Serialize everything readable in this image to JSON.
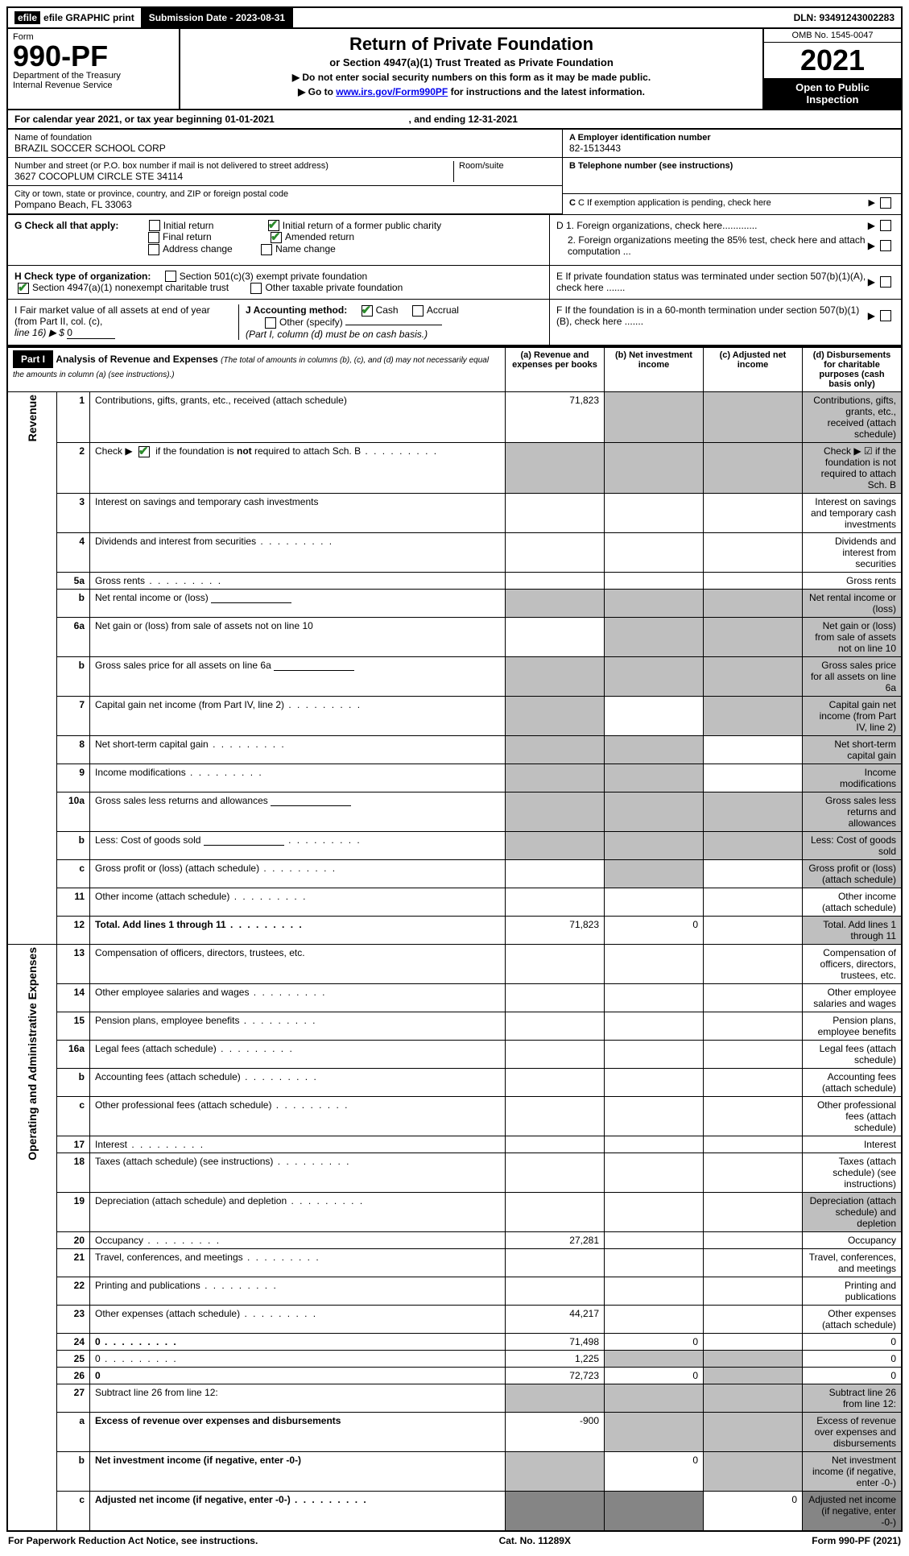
{
  "colors": {
    "black": "#000000",
    "white": "#ffffff",
    "grey_cell": "#bfbfbf",
    "dark_cell": "#858585",
    "link": "#0000ee",
    "check_green": "#2a8a2a"
  },
  "topbar": {
    "efile": "efile GRAPHIC print",
    "submission_label": "Submission Date - 2023-08-31",
    "dln_label": "DLN: 93491243002283"
  },
  "header": {
    "form_word": "Form",
    "form_number": "990-PF",
    "dept1": "Department of the Treasury",
    "dept2": "Internal Revenue Service",
    "title": "Return of Private Foundation",
    "subtitle": "or Section 4947(a)(1) Trust Treated as Private Foundation",
    "instr1_prefix": "▶ Do not enter social security numbers on this form as it may be made public.",
    "instr2_prefix": "▶ Go to ",
    "instr2_link_text": "www.irs.gov/Form990PF",
    "instr2_suffix": " for instructions and the latest information.",
    "omb": "OMB No. 1545-0047",
    "year": "2021",
    "open_public_1": "Open to Public",
    "open_public_2": "Inspection"
  },
  "calendar_line": {
    "prefix": "For calendar year 2021, or tax year beginning ",
    "begin": "01-01-2021",
    "mid": " , and ending ",
    "end": "12-31-2021"
  },
  "identity": {
    "name_label": "Name of foundation",
    "name_value": "BRAZIL SOCCER SCHOOL CORP",
    "addr_label": "Number and street (or P.O. box number if mail is not delivered to street address)",
    "addr_value": "3627 COCOPLUM CIRCLE STE 34114",
    "room_label": "Room/suite",
    "city_label": "City or town, state or province, country, and ZIP or foreign postal code",
    "city_value": "Pompano Beach, FL  33063",
    "a_label": "A Employer identification number",
    "a_value": "82-1513443",
    "b_label": "B Telephone number (see instructions)",
    "c_label": "C If exemption application is pending, check here",
    "d1_label": "D 1. Foreign organizations, check here.............",
    "d2_label": "2. Foreign organizations meeting the 85% test, check here and attach computation ...",
    "e_label": "E If private foundation status was terminated under section 507(b)(1)(A), check here .......",
    "f_label": "F If the foundation is in a 60-month termination under section 507(b)(1)(B), check here ......."
  },
  "g_section": {
    "label": "G Check all that apply:",
    "opts": {
      "initial_return": "Initial return",
      "final_return": "Final return",
      "address_change": "Address change",
      "initial_former": "Initial return of a former public charity",
      "amended": "Amended return",
      "name_change": "Name change"
    },
    "checked": {
      "initial_former": true,
      "amended": true
    }
  },
  "h_section": {
    "label": "H Check type of organization:",
    "opt1": "Section 501(c)(3) exempt private foundation",
    "opt2": "Section 4947(a)(1) nonexempt charitable trust",
    "opt3": "Other taxable private foundation",
    "checked": {
      "opt2": true
    }
  },
  "i_section": {
    "label_1": "I Fair market value of all assets at end of year (from Part II, col. (c),",
    "label_2": "line 16) ▶ $ ",
    "value": "0"
  },
  "j_section": {
    "label": "J Accounting method:",
    "cash": "Cash",
    "accrual": "Accrual",
    "other": "Other (specify)",
    "note": "(Part I, column (d) must be on cash basis.)",
    "checked": {
      "cash": true
    }
  },
  "part1": {
    "header": "Part I",
    "title": "Analysis of Revenue and Expenses",
    "title_note": " (The total of amounts in columns (b), (c), and (d) may not necessarily equal the amounts in column (a) (see instructions).)",
    "cols": {
      "a": "(a)  Revenue and expenses per books",
      "b": "(b)  Net investment income",
      "c": "(c)  Adjusted net income",
      "d": "(d)  Disbursements for charitable purposes (cash basis only)"
    }
  },
  "side_labels": {
    "revenue": "Revenue",
    "expenses": "Operating and Administrative Expenses"
  },
  "lines": [
    {
      "n": "1",
      "d": "Contributions, gifts, grants, etc., received (attach schedule)",
      "a": "71,823",
      "grey": [
        "b",
        "c",
        "d"
      ]
    },
    {
      "n": "2",
      "d": "Check ▶ ☑ if the foundation is not required to attach Sch. B",
      "dots": true,
      "grey": [
        "a",
        "b",
        "c",
        "d"
      ],
      "check2": true
    },
    {
      "n": "3",
      "d": "Interest on savings and temporary cash investments"
    },
    {
      "n": "4",
      "d": "Dividends and interest from securities",
      "dots": true
    },
    {
      "n": "5a",
      "d": "Gross rents",
      "dots": true
    },
    {
      "n": "b",
      "d": "Net rental income or (loss)",
      "inlinebox": true,
      "grey": [
        "a",
        "b",
        "c",
        "d"
      ]
    },
    {
      "n": "6a",
      "d": "Net gain or (loss) from sale of assets not on line 10",
      "grey": [
        "b",
        "c",
        "d"
      ]
    },
    {
      "n": "b",
      "d": "Gross sales price for all assets on line 6a",
      "inlinebox": true,
      "grey": [
        "a",
        "b",
        "c",
        "d"
      ]
    },
    {
      "n": "7",
      "d": "Capital gain net income (from Part IV, line 2)",
      "dots": true,
      "grey": [
        "a",
        "c",
        "d"
      ]
    },
    {
      "n": "8",
      "d": "Net short-term capital gain",
      "dots": true,
      "grey": [
        "a",
        "b",
        "d"
      ]
    },
    {
      "n": "9",
      "d": "Income modifications",
      "dots": true,
      "grey": [
        "a",
        "b",
        "d"
      ]
    },
    {
      "n": "10a",
      "d": "Gross sales less returns and allowances",
      "inlinebox": true,
      "grey": [
        "a",
        "b",
        "c",
        "d"
      ]
    },
    {
      "n": "b",
      "d": "Less: Cost of goods sold",
      "dots": true,
      "inlinebox": true,
      "grey": [
        "a",
        "b",
        "c",
        "d"
      ]
    },
    {
      "n": "c",
      "d": "Gross profit or (loss) (attach schedule)",
      "dots": true,
      "grey": [
        "b",
        "d"
      ]
    },
    {
      "n": "11",
      "d": "Other income (attach schedule)",
      "dots": true
    },
    {
      "n": "12",
      "d": "Total. Add lines 1 through 11",
      "dots": true,
      "bold": true,
      "a": "71,823",
      "b": "0",
      "grey": [
        "d"
      ]
    },
    {
      "n": "13",
      "d": "Compensation of officers, directors, trustees, etc."
    },
    {
      "n": "14",
      "d": "Other employee salaries and wages",
      "dots": true
    },
    {
      "n": "15",
      "d": "Pension plans, employee benefits",
      "dots": true
    },
    {
      "n": "16a",
      "d": "Legal fees (attach schedule)",
      "dots": true
    },
    {
      "n": "b",
      "d": "Accounting fees (attach schedule)",
      "dots": true
    },
    {
      "n": "c",
      "d": "Other professional fees (attach schedule)",
      "dots": true
    },
    {
      "n": "17",
      "d": "Interest",
      "dots": true
    },
    {
      "n": "18",
      "d": "Taxes (attach schedule) (see instructions)",
      "dots": true
    },
    {
      "n": "19",
      "d": "Depreciation (attach schedule) and depletion",
      "dots": true,
      "grey": [
        "d"
      ]
    },
    {
      "n": "20",
      "d": "Occupancy",
      "dots": true,
      "a": "27,281"
    },
    {
      "n": "21",
      "d": "Travel, conferences, and meetings",
      "dots": true
    },
    {
      "n": "22",
      "d": "Printing and publications",
      "dots": true
    },
    {
      "n": "23",
      "d": "Other expenses (attach schedule)",
      "dots": true,
      "a": "44,217"
    },
    {
      "n": "24",
      "d": "0",
      "dots": true,
      "bold": true,
      "a": "71,498",
      "b": "0"
    },
    {
      "n": "25",
      "d": "0",
      "dots": true,
      "a": "1,225",
      "grey": [
        "b",
        "c"
      ]
    },
    {
      "n": "26",
      "d": "0",
      "bold": true,
      "a": "72,723",
      "b": "0",
      "grey": [
        "c"
      ]
    },
    {
      "n": "27",
      "d": "Subtract line 26 from line 12:",
      "grey": [
        "a",
        "b",
        "c",
        "d"
      ]
    },
    {
      "n": "a",
      "d": "Excess of revenue over expenses and disbursements",
      "bold": true,
      "a": "-900",
      "grey": [
        "b",
        "c",
        "d"
      ]
    },
    {
      "n": "b",
      "d": "Net investment income (if negative, enter -0-)",
      "bold": true,
      "b": "0",
      "grey": [
        "a",
        "c",
        "d"
      ]
    },
    {
      "n": "c",
      "d": "Adjusted net income (if negative, enter -0-)",
      "bold": true,
      "dots": true,
      "c": "0",
      "dark": [
        "a",
        "b",
        "d"
      ]
    }
  ],
  "footer": {
    "left": "For Paperwork Reduction Act Notice, see instructions.",
    "mid": "Cat. No. 11289X",
    "right": "Form 990-PF (2021)"
  }
}
